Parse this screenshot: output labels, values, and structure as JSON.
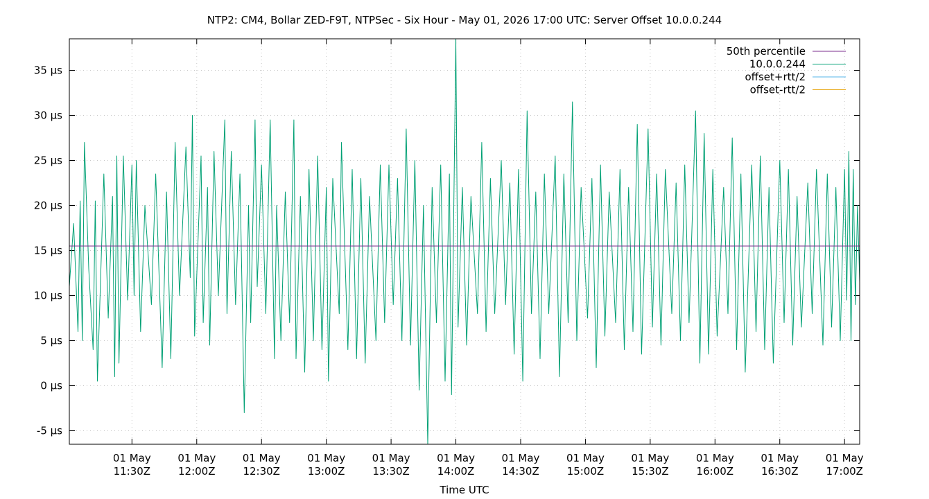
{
  "chart_data": {
    "type": "line",
    "title": "NTP2: CM4, Bollar ZED-F9T, NTPSec - Six Hour - May 01, 2026 17:00 UTC: Server Offset 10.0.0.244",
    "xlabel": "Time UTC",
    "ylabel": "",
    "ylim": [
      -6.5,
      38.5
    ],
    "xlim": [
      "2026-05-01T11:01Z",
      "2026-05-01T17:07Z"
    ],
    "grid": true,
    "legend_position": "top-right",
    "y_ticks": [
      {
        "value": -5,
        "label": "-5 µs"
      },
      {
        "value": 0,
        "label": "0 µs"
      },
      {
        "value": 5,
        "label": "5 µs"
      },
      {
        "value": 10,
        "label": "10 µs"
      },
      {
        "value": 15,
        "label": "15 µs"
      },
      {
        "value": 20,
        "label": "20 µs"
      },
      {
        "value": 25,
        "label": "25 µs"
      },
      {
        "value": 30,
        "label": "30 µs"
      },
      {
        "value": 35,
        "label": "35 µs"
      }
    ],
    "x_ticks": [
      {
        "value": "2026-05-01T11:30Z",
        "line1": "01 May",
        "line2": "11:30Z"
      },
      {
        "value": "2026-05-01T12:00Z",
        "line1": "01 May",
        "line2": "12:00Z"
      },
      {
        "value": "2026-05-01T12:30Z",
        "line1": "01 May",
        "line2": "12:30Z"
      },
      {
        "value": "2026-05-01T13:00Z",
        "line1": "01 May",
        "line2": "13:00Z"
      },
      {
        "value": "2026-05-01T13:30Z",
        "line1": "01 May",
        "line2": "13:30Z"
      },
      {
        "value": "2026-05-01T14:00Z",
        "line1": "01 May",
        "line2": "14:00Z"
      },
      {
        "value": "2026-05-01T14:30Z",
        "line1": "01 May",
        "line2": "14:30Z"
      },
      {
        "value": "2026-05-01T15:00Z",
        "line1": "01 May",
        "line2": "15:00Z"
      },
      {
        "value": "2026-05-01T15:30Z",
        "line1": "01 May",
        "line2": "15:30Z"
      },
      {
        "value": "2026-05-01T16:00Z",
        "line1": "01 May",
        "line2": "16:00Z"
      },
      {
        "value": "2026-05-01T16:30Z",
        "line1": "01 May",
        "line2": "16:30Z"
      },
      {
        "value": "2026-05-01T17:00Z",
        "line1": "01 May",
        "line2": "17:00Z"
      }
    ],
    "series": [
      {
        "name": "50th percentile",
        "color": "#7b2d8e",
        "points": [
          [
            "2026-05-01T11:01Z",
            15.5
          ],
          [
            "2026-05-01T17:07Z",
            15.5
          ]
        ]
      },
      {
        "name": "10.0.0.244",
        "color": "#00a074",
        "points": [
          [
            "2026-05-01T11:01Z",
            11.0
          ],
          [
            "2026-05-01T11:03Z",
            18.0
          ],
          [
            "2026-05-01T11:05Z",
            6.0
          ],
          [
            "2026-05-01T11:06Z",
            20.5
          ],
          [
            "2026-05-01T11:07Z",
            5.0
          ],
          [
            "2026-05-01T11:08Z",
            27.0
          ],
          [
            "2026-05-01T11:10Z",
            13.0
          ],
          [
            "2026-05-01T11:12Z",
            4.0
          ],
          [
            "2026-05-01T11:13Z",
            20.5
          ],
          [
            "2026-05-01T11:14Z",
            0.5
          ],
          [
            "2026-05-01T11:17Z",
            23.5
          ],
          [
            "2026-05-01T11:19Z",
            7.5
          ],
          [
            "2026-05-01T11:21Z",
            21.0
          ],
          [
            "2026-05-01T11:22Z",
            1.0
          ],
          [
            "2026-05-01T11:23Z",
            25.5
          ],
          [
            "2026-05-01T11:24Z",
            2.5
          ],
          [
            "2026-05-01T11:26Z",
            25.5
          ],
          [
            "2026-05-01T11:28Z",
            9.5
          ],
          [
            "2026-05-01T11:30Z",
            24.5
          ],
          [
            "2026-05-01T11:31Z",
            10.0
          ],
          [
            "2026-05-01T11:32Z",
            25.0
          ],
          [
            "2026-05-01T11:34Z",
            6.0
          ],
          [
            "2026-05-01T11:36Z",
            20.0
          ],
          [
            "2026-05-01T11:39Z",
            9.0
          ],
          [
            "2026-05-01T11:41Z",
            23.5
          ],
          [
            "2026-05-01T11:44Z",
            2.0
          ],
          [
            "2026-05-01T11:46Z",
            21.5
          ],
          [
            "2026-05-01T11:48Z",
            3.0
          ],
          [
            "2026-05-01T11:50Z",
            27.0
          ],
          [
            "2026-05-01T11:52Z",
            10.0
          ],
          [
            "2026-05-01T11:55Z",
            26.5
          ],
          [
            "2026-05-01T11:57Z",
            12.0
          ],
          [
            "2026-05-01T11:58Z",
            30.0
          ],
          [
            "2026-05-01T11:59Z",
            5.5
          ],
          [
            "2026-05-01T12:02Z",
            25.5
          ],
          [
            "2026-05-01T12:03Z",
            7.0
          ],
          [
            "2026-05-01T12:05Z",
            22.0
          ],
          [
            "2026-05-01T12:06Z",
            4.5
          ],
          [
            "2026-05-01T12:08Z",
            26.0
          ],
          [
            "2026-05-01T12:10Z",
            10.0
          ],
          [
            "2026-05-01T12:13Z",
            29.5
          ],
          [
            "2026-05-01T12:14Z",
            8.0
          ],
          [
            "2026-05-01T12:16Z",
            26.0
          ],
          [
            "2026-05-01T12:18Z",
            9.0
          ],
          [
            "2026-05-01T12:20Z",
            23.5
          ],
          [
            "2026-05-01T12:22Z",
            -3.0
          ],
          [
            "2026-05-01T12:24Z",
            20.0
          ],
          [
            "2026-05-01T12:25Z",
            7.0
          ],
          [
            "2026-05-01T12:27Z",
            29.5
          ],
          [
            "2026-05-01T12:28Z",
            11.0
          ],
          [
            "2026-05-01T12:30Z",
            24.5
          ],
          [
            "2026-05-01T12:32Z",
            8.0
          ],
          [
            "2026-05-01T12:34Z",
            29.5
          ],
          [
            "2026-05-01T12:36Z",
            3.0
          ],
          [
            "2026-05-01T12:37Z",
            20.0
          ],
          [
            "2026-05-01T12:39Z",
            5.0
          ],
          [
            "2026-05-01T12:41Z",
            21.5
          ],
          [
            "2026-05-01T12:43Z",
            7.0
          ],
          [
            "2026-05-01T12:45Z",
            29.5
          ],
          [
            "2026-05-01T12:46Z",
            3.0
          ],
          [
            "2026-05-01T12:48Z",
            21.0
          ],
          [
            "2026-05-01T12:50Z",
            1.5
          ],
          [
            "2026-05-01T12:52Z",
            24.0
          ],
          [
            "2026-05-01T12:54Z",
            5.0
          ],
          [
            "2026-05-01T12:56Z",
            25.5
          ],
          [
            "2026-05-01T12:58Z",
            4.0
          ],
          [
            "2026-05-01T13:00Z",
            22.0
          ],
          [
            "2026-05-01T13:01Z",
            0.5
          ],
          [
            "2026-05-01T13:03Z",
            23.0
          ],
          [
            "2026-05-01T13:06Z",
            8.0
          ],
          [
            "2026-05-01T13:07Z",
            27.0
          ],
          [
            "2026-05-01T13:10Z",
            4.0
          ],
          [
            "2026-05-01T13:12Z",
            24.0
          ],
          [
            "2026-05-01T13:14Z",
            3.0
          ],
          [
            "2026-05-01T13:16Z",
            23.0
          ],
          [
            "2026-05-01T13:18Z",
            2.5
          ],
          [
            "2026-05-01T13:20Z",
            21.0
          ],
          [
            "2026-05-01T13:23Z",
            5.0
          ],
          [
            "2026-05-01T13:25Z",
            24.5
          ],
          [
            "2026-05-01T13:27Z",
            7.0
          ],
          [
            "2026-05-01T13:29Z",
            24.5
          ],
          [
            "2026-05-01T13:31Z",
            9.0
          ],
          [
            "2026-05-01T13:33Z",
            23.0
          ],
          [
            "2026-05-01T13:35Z",
            5.0
          ],
          [
            "2026-05-01T13:37Z",
            28.5
          ],
          [
            "2026-05-01T13:39Z",
            4.5
          ],
          [
            "2026-05-01T13:41Z",
            25.0
          ],
          [
            "2026-05-01T13:43Z",
            -0.5
          ],
          [
            "2026-05-01T13:45Z",
            20.0
          ],
          [
            "2026-05-01T13:47Z",
            -6.5
          ],
          [
            "2026-05-01T13:49Z",
            22.0
          ],
          [
            "2026-05-01T13:51Z",
            7.0
          ],
          [
            "2026-05-01T13:53Z",
            24.5
          ],
          [
            "2026-05-01T13:55Z",
            0.5
          ],
          [
            "2026-05-01T13:57Z",
            23.5
          ],
          [
            "2026-05-01T13:58Z",
            -1.0
          ],
          [
            "2026-05-01T14:00Z",
            38.5
          ],
          [
            "2026-05-01T14:01Z",
            6.5
          ],
          [
            "2026-05-01T14:03Z",
            22.0
          ],
          [
            "2026-05-01T14:05Z",
            4.5
          ],
          [
            "2026-05-01T14:07Z",
            21.0
          ],
          [
            "2026-05-01T14:10Z",
            8.0
          ],
          [
            "2026-05-01T14:12Z",
            27.0
          ],
          [
            "2026-05-01T14:14Z",
            6.0
          ],
          [
            "2026-05-01T14:16Z",
            23.0
          ],
          [
            "2026-05-01T14:18Z",
            8.0
          ],
          [
            "2026-05-01T14:21Z",
            25.0
          ],
          [
            "2026-05-01T14:23Z",
            9.0
          ],
          [
            "2026-05-01T14:25Z",
            22.5
          ],
          [
            "2026-05-01T14:27Z",
            3.5
          ],
          [
            "2026-05-01T14:29Z",
            24.0
          ],
          [
            "2026-05-01T14:31Z",
            0.5
          ],
          [
            "2026-05-01T14:33Z",
            30.5
          ],
          [
            "2026-05-01T14:35Z",
            8.0
          ],
          [
            "2026-05-01T14:37Z",
            21.5
          ],
          [
            "2026-05-01T14:39Z",
            3.0
          ],
          [
            "2026-05-01T14:41Z",
            23.5
          ],
          [
            "2026-05-01T14:43Z",
            8.0
          ],
          [
            "2026-05-01T14:46Z",
            25.5
          ],
          [
            "2026-05-01T14:48Z",
            1.0
          ],
          [
            "2026-05-01T14:50Z",
            23.5
          ],
          [
            "2026-05-01T14:52Z",
            7.0
          ],
          [
            "2026-05-01T14:54Z",
            31.5
          ],
          [
            "2026-05-01T14:56Z",
            5.0
          ],
          [
            "2026-05-01T14:58Z",
            22.0
          ],
          [
            "2026-05-01T15:01Z",
            7.5
          ],
          [
            "2026-05-01T15:03Z",
            23.0
          ],
          [
            "2026-05-01T15:05Z",
            2.0
          ],
          [
            "2026-05-01T15:07Z",
            24.5
          ],
          [
            "2026-05-01T15:09Z",
            5.5
          ],
          [
            "2026-05-01T15:11Z",
            21.5
          ],
          [
            "2026-05-01T15:14Z",
            7.0
          ],
          [
            "2026-05-01T15:16Z",
            24.0
          ],
          [
            "2026-05-01T15:18Z",
            4.0
          ],
          [
            "2026-05-01T15:20Z",
            22.0
          ],
          [
            "2026-05-01T15:22Z",
            6.0
          ],
          [
            "2026-05-01T15:24Z",
            29.0
          ],
          [
            "2026-05-01T15:26Z",
            3.5
          ],
          [
            "2026-05-01T15:29Z",
            28.5
          ],
          [
            "2026-05-01T15:31Z",
            6.5
          ],
          [
            "2026-05-01T15:33Z",
            23.5
          ],
          [
            "2026-05-01T15:35Z",
            4.5
          ],
          [
            "2026-05-01T15:37Z",
            24.0
          ],
          [
            "2026-05-01T15:40Z",
            8.0
          ],
          [
            "2026-05-01T15:42Z",
            22.5
          ],
          [
            "2026-05-01T15:44Z",
            5.0
          ],
          [
            "2026-05-01T15:46Z",
            24.5
          ],
          [
            "2026-05-01T15:48Z",
            7.0
          ],
          [
            "2026-05-01T15:51Z",
            30.5
          ],
          [
            "2026-05-01T15:53Z",
            2.5
          ],
          [
            "2026-05-01T15:55Z",
            28.0
          ],
          [
            "2026-05-01T15:57Z",
            3.5
          ],
          [
            "2026-05-01T15:59Z",
            24.0
          ],
          [
            "2026-05-01T16:01Z",
            5.5
          ],
          [
            "2026-05-01T16:04Z",
            22.0
          ],
          [
            "2026-05-01T16:06Z",
            8.0
          ],
          [
            "2026-05-01T16:08Z",
            27.5
          ],
          [
            "2026-05-01T16:10Z",
            4.0
          ],
          [
            "2026-05-01T16:12Z",
            23.5
          ],
          [
            "2026-05-01T16:14Z",
            1.5
          ],
          [
            "2026-05-01T16:17Z",
            24.5
          ],
          [
            "2026-05-01T16:19Z",
            6.0
          ],
          [
            "2026-05-01T16:21Z",
            25.5
          ],
          [
            "2026-05-01T16:23Z",
            4.0
          ],
          [
            "2026-05-01T16:25Z",
            22.0
          ],
          [
            "2026-05-01T16:27Z",
            2.5
          ],
          [
            "2026-05-01T16:30Z",
            25.0
          ],
          [
            "2026-05-01T16:32Z",
            7.0
          ],
          [
            "2026-05-01T16:34Z",
            24.0
          ],
          [
            "2026-05-01T16:36Z",
            4.5
          ],
          [
            "2026-05-01T16:38Z",
            21.0
          ],
          [
            "2026-05-01T16:40Z",
            6.5
          ],
          [
            "2026-05-01T16:43Z",
            22.5
          ],
          [
            "2026-05-01T16:45Z",
            8.0
          ],
          [
            "2026-05-01T16:47Z",
            24.0
          ],
          [
            "2026-05-01T16:50Z",
            4.5
          ],
          [
            "2026-05-01T16:52Z",
            23.5
          ],
          [
            "2026-05-01T16:54Z",
            6.5
          ],
          [
            "2026-05-01T16:56Z",
            22.0
          ],
          [
            "2026-05-01T16:58Z",
            5.0
          ],
          [
            "2026-05-01T17:00Z",
            24.0
          ],
          [
            "2026-05-01T17:01Z",
            9.5
          ],
          [
            "2026-05-01T17:02Z",
            26.0
          ],
          [
            "2026-05-01T17:03Z",
            5.0
          ],
          [
            "2026-05-01T17:04Z",
            24.0
          ],
          [
            "2026-05-01T17:05Z",
            9.0
          ],
          [
            "2026-05-01T17:06Z",
            20.0
          ],
          [
            "2026-05-01T17:07Z",
            11.5
          ]
        ]
      },
      {
        "name": "offset+rtt/2",
        "color": "#56b4e9",
        "points": []
      },
      {
        "name": "offset-rtt/2",
        "color": "#e6a000",
        "points": []
      }
    ]
  }
}
